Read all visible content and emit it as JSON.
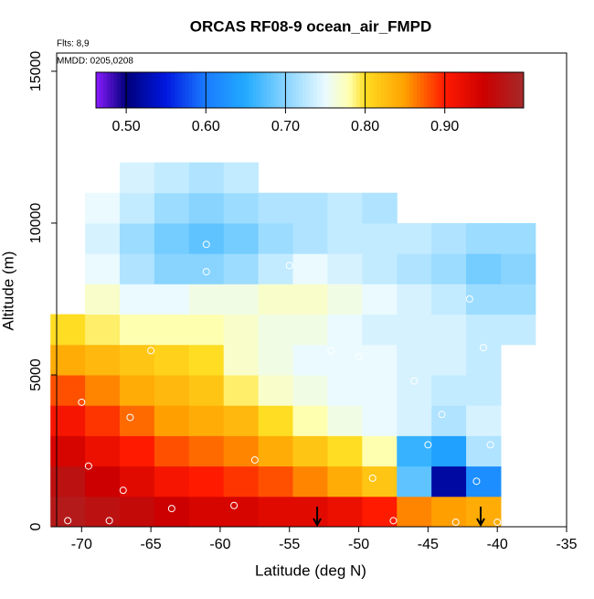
{
  "chart_data": {
    "type": "heatmap",
    "title": "ORCAS RF08-9 ocean_air_FMPD",
    "annotations": [
      "Flts: 8,9",
      "MMDD: 0205,0208"
    ],
    "x_label": "Latitude (deg N)",
    "y_label": "Altitude (m)",
    "xlim": [
      -71.8,
      -35
    ],
    "ylim": [
      0,
      15600
    ],
    "xticks": [
      -70,
      -65,
      -60,
      -55,
      -50,
      -45,
      -40,
      -35
    ],
    "yticks": [
      0,
      5000,
      10000,
      15000
    ],
    "x": [
      -71,
      -68.5,
      -66,
      -63.5,
      -61,
      -58.5,
      -56,
      -53.5,
      -51,
      -48.5,
      -46,
      -43.5,
      -41,
      -38.5
    ],
    "y": [
      500,
      1500,
      2500,
      3500,
      4500,
      5500,
      6500,
      7500,
      8500,
      9500,
      10500,
      11500
    ],
    "z": [
      [
        0.98,
        0.97,
        0.96,
        0.95,
        0.94,
        0.94,
        0.93,
        0.93,
        0.92,
        0.9,
        0.86,
        0.85,
        0.84,
        null
      ],
      [
        0.97,
        0.95,
        0.93,
        0.91,
        0.9,
        0.89,
        0.88,
        0.86,
        0.84,
        0.82,
        0.68,
        0.52,
        0.62,
        null
      ],
      [
        0.94,
        0.92,
        0.9,
        0.88,
        0.87,
        0.86,
        0.84,
        0.82,
        0.8,
        0.78,
        0.66,
        0.64,
        0.72,
        null
      ],
      [
        0.91,
        0.89,
        0.87,
        0.85,
        0.84,
        0.83,
        0.8,
        0.78,
        0.76,
        0.75,
        0.74,
        0.72,
        0.74,
        null
      ],
      [
        0.88,
        0.86,
        0.84,
        0.83,
        0.82,
        0.79,
        0.77,
        0.76,
        0.75,
        0.75,
        0.74,
        0.73,
        0.73,
        null
      ],
      [
        0.84,
        0.83,
        0.82,
        0.81,
        0.8,
        0.77,
        0.76,
        0.75,
        0.75,
        0.75,
        0.74,
        0.74,
        0.73,
        null
      ],
      [
        0.8,
        0.79,
        0.78,
        0.78,
        0.78,
        0.77,
        0.76,
        0.76,
        0.75,
        0.74,
        0.74,
        0.74,
        0.73,
        0.73
      ],
      [
        null,
        0.77,
        0.75,
        0.75,
        0.76,
        0.76,
        0.77,
        0.77,
        0.76,
        0.75,
        0.74,
        0.73,
        0.71,
        0.71
      ],
      [
        null,
        0.75,
        0.72,
        0.7,
        0.7,
        0.71,
        0.73,
        0.75,
        0.74,
        0.73,
        0.72,
        0.71,
        0.69,
        0.7
      ],
      [
        null,
        0.74,
        0.71,
        0.69,
        0.68,
        0.69,
        0.71,
        0.72,
        0.73,
        0.73,
        0.73,
        0.72,
        0.71,
        0.71
      ],
      [
        null,
        0.75,
        0.73,
        0.71,
        0.7,
        0.71,
        0.72,
        0.72,
        0.73,
        0.72,
        null,
        null,
        null,
        null
      ],
      [
        null,
        null,
        0.74,
        0.73,
        0.72,
        0.73,
        null,
        null,
        null,
        null,
        null,
        null,
        null,
        null
      ]
    ],
    "points": {
      "x": [
        -71,
        -70,
        -69.5,
        -68,
        -67,
        -66.5,
        -65,
        -63.5,
        -61,
        -61,
        -59,
        -57.5,
        -55,
        -52,
        -50,
        -49,
        -47.5,
        -46,
        -45,
        -44,
        -43,
        -42,
        -41.5,
        -41,
        -40.5,
        -40
      ],
      "y": [
        200,
        4100,
        2000,
        200,
        1200,
        3600,
        5800,
        600,
        9300,
        8400,
        700,
        2200,
        8600,
        5800,
        5600,
        1600,
        200,
        4800,
        2700,
        3700,
        150,
        7500,
        1500,
        5900,
        2700,
        150
      ]
    },
    "arrows_x": [
      -53,
      -41.2
    ],
    "colorbar": {
      "lim": [
        0.462,
        0.999
      ],
      "ticks": [
        {
          "value": 0.5,
          "label": "0.50"
        },
        {
          "value": 0.6,
          "label": "0.60"
        },
        {
          "value": 0.7,
          "label": "0.70"
        },
        {
          "value": 0.8,
          "label": "0.80"
        },
        {
          "value": 0.9,
          "label": "0.90"
        }
      ],
      "stops": [
        {
          "value": 0.462,
          "color": "#8a1cff"
        },
        {
          "value": 0.5,
          "color": "#00007a"
        },
        {
          "value": 0.55,
          "color": "#0018e0"
        },
        {
          "value": 0.6,
          "color": "#1a7cff"
        },
        {
          "value": 0.65,
          "color": "#22aaff"
        },
        {
          "value": 0.7,
          "color": "#88d4ff"
        },
        {
          "value": 0.75,
          "color": "#eafaff"
        },
        {
          "value": 0.78,
          "color": "#ffffb0"
        },
        {
          "value": 0.8,
          "color": "#ffdd22"
        },
        {
          "value": 0.85,
          "color": "#ffa000"
        },
        {
          "value": 0.9,
          "color": "#ff1a00"
        },
        {
          "value": 0.95,
          "color": "#cc0000"
        },
        {
          "value": 0.999,
          "color": "#a52a2a"
        }
      ]
    }
  }
}
